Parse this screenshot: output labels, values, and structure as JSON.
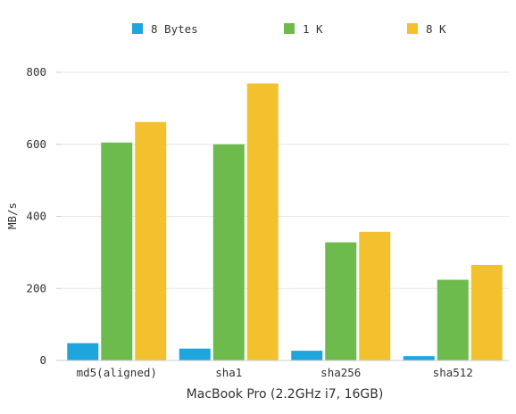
{
  "chart_data": {
    "type": "bar",
    "categories": [
      "md5(aligned)",
      "sha1",
      "sha256",
      "sha512"
    ],
    "series": [
      {
        "name": "8 Bytes",
        "color": "#1ea6dc",
        "values": [
          48,
          33,
          27,
          12
        ]
      },
      {
        "name": "1 K",
        "color": "#6cbb4c",
        "values": [
          605,
          600,
          328,
          224
        ]
      },
      {
        "name": "8 K",
        "color": "#f3c12e",
        "values": [
          662,
          769,
          357,
          265
        ]
      }
    ],
    "title": "",
    "xlabel": "MacBook Pro (2.2GHz i7, 16GB)",
    "ylabel": "MB/s",
    "ylim": [
      0,
      800
    ],
    "yticks": [
      0,
      200,
      400,
      600,
      800
    ],
    "grid": true,
    "legend_position": "top"
  }
}
